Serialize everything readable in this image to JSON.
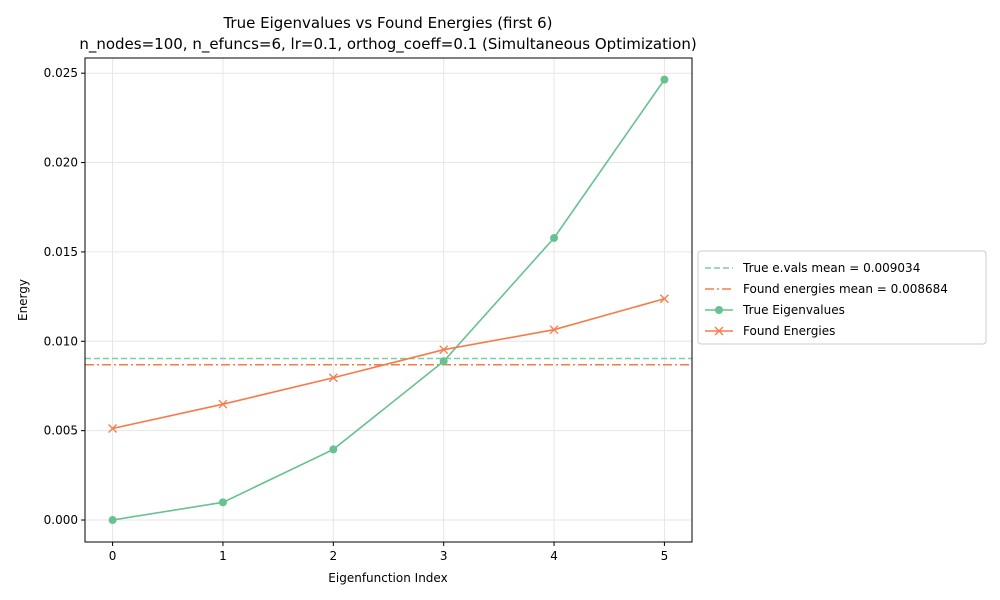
{
  "chart_data": {
    "type": "line",
    "title": "True Eigenvalues vs Found Energies (first 6)",
    "subtitle": "n_nodes=100, n_efuncs=6, lr=0.1, orthog_coeff=0.1 (Simultaneous Optimization)",
    "xlabel": "Eigenfunction Index",
    "ylabel": "Energy",
    "x": [
      0,
      1,
      2,
      3,
      4,
      5
    ],
    "x_ticks": [
      "0",
      "1",
      "2",
      "3",
      "4",
      "5"
    ],
    "y_ticks": [
      "0.000",
      "0.005",
      "0.010",
      "0.015",
      "0.020",
      "0.025"
    ],
    "xlim": [
      -0.25,
      5.25
    ],
    "ylim": [
      -0.00123,
      0.02585
    ],
    "grid": true,
    "legend_position": "center-right, outside plot",
    "series": [
      {
        "name": "True Eigenvalues",
        "marker": "circle",
        "color": "#66c290",
        "values": [
          0.0,
          0.00099,
          0.00395,
          0.00888,
          0.01578,
          0.02464
        ]
      },
      {
        "name": "Found Energies",
        "marker": "x",
        "color": "#f77b4a",
        "values": [
          0.00512,
          0.00648,
          0.00796,
          0.00953,
          0.01065,
          0.01238
        ]
      }
    ],
    "hlines": [
      {
        "name": "True e.vals mean = 0.009034",
        "value": 0.009034,
        "style": "dashed",
        "color": "#7ccf9e"
      },
      {
        "name": "Found energies mean = 0.008684",
        "value": 0.008684,
        "style": "dashdot",
        "color": "#f77b4a"
      }
    ],
    "legend": [
      "True e.vals mean = 0.009034",
      "Found energies mean = 0.008684",
      "True Eigenvalues",
      "Found Energies"
    ]
  }
}
